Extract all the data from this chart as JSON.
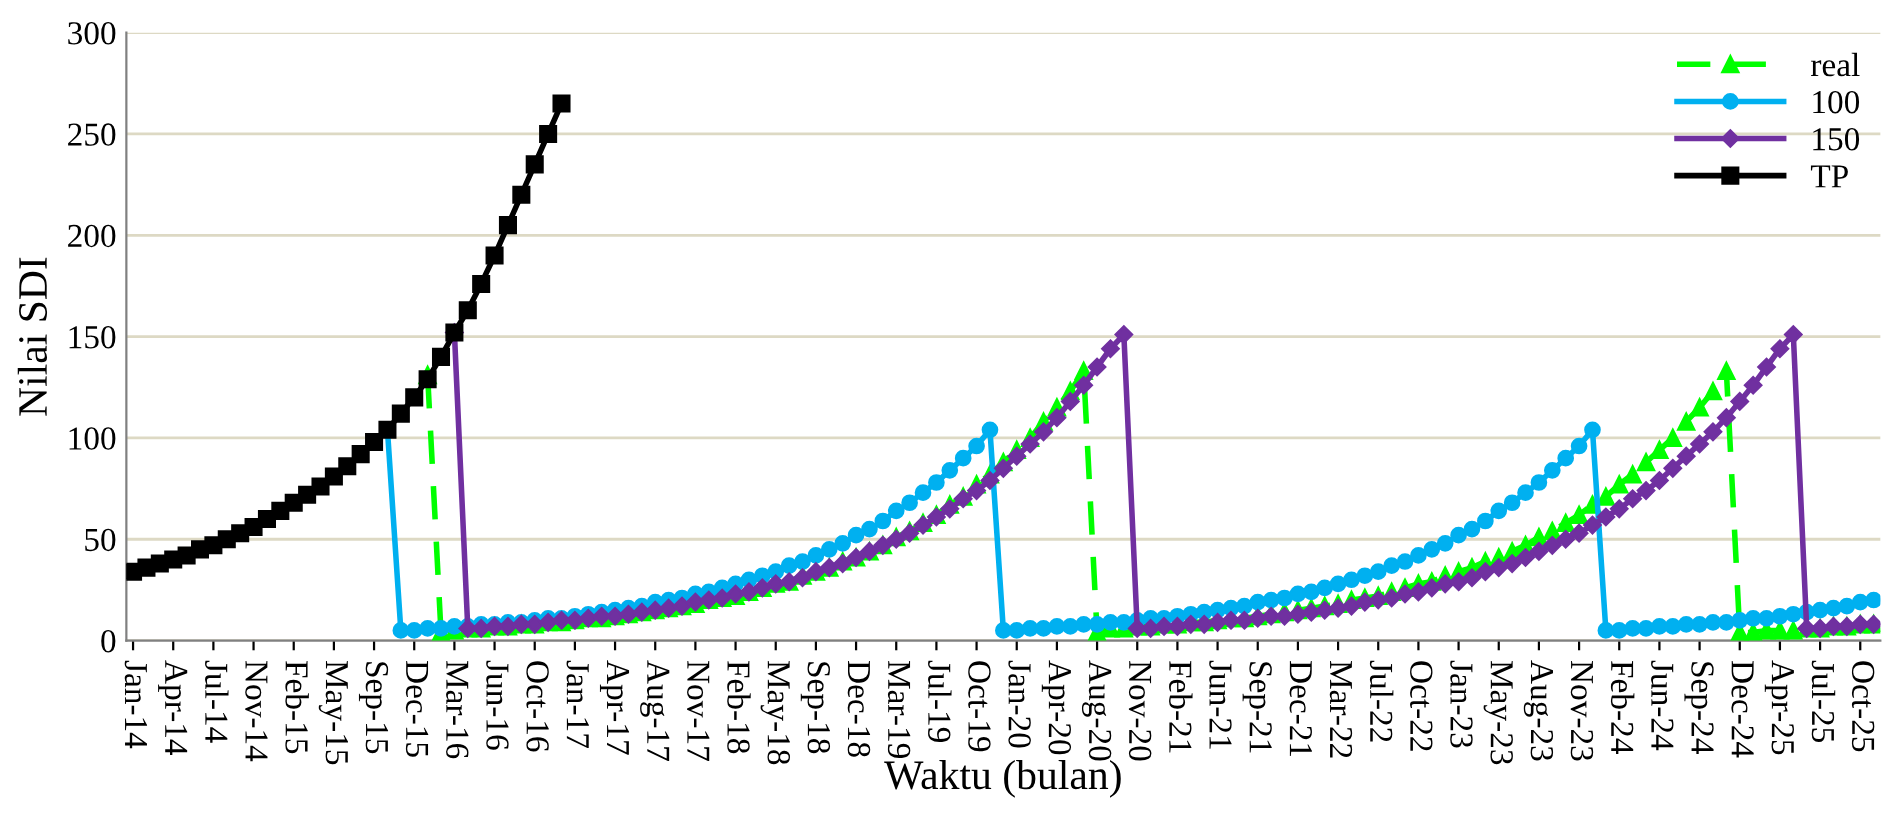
{
  "chart_data": {
    "type": "line",
    "xlabel": "Waktu (bulan)",
    "ylabel": "Nilai SDI",
    "categories": [
      "Jan-14",
      null,
      null,
      "Apr-14",
      null,
      null,
      "Jul-14",
      null,
      null,
      "Nov-14",
      null,
      null,
      "Feb-15",
      null,
      null,
      "May-15",
      null,
      null,
      "Sep-15",
      null,
      null,
      "Dec-15",
      null,
      null,
      "Mar-16",
      null,
      null,
      "Jun-16",
      null,
      null,
      "Oct-16",
      null,
      null,
      "Jan-17",
      null,
      null,
      "Apr-17",
      null,
      null,
      "Aug-17",
      null,
      null,
      "Nov-17",
      null,
      null,
      "Feb-18",
      null,
      null,
      "May-18",
      null,
      null,
      "Sep-18",
      null,
      null,
      "Dec-18",
      null,
      null,
      "Mar-19",
      null,
      null,
      "Jul-19",
      null,
      null,
      "Oct-19",
      null,
      null,
      "Jan-20",
      null,
      null,
      "Apr-20",
      null,
      null,
      "Aug-20",
      null,
      null,
      "Nov-20",
      null,
      null,
      "Feb-21",
      null,
      null,
      "Jun-21",
      null,
      null,
      "Sep-21",
      null,
      null,
      "Dec-21",
      null,
      null,
      "Mar-22",
      null,
      null,
      "Jul-22",
      null,
      null,
      "Oct-22",
      null,
      null,
      "Jan-23",
      null,
      null,
      "May-23",
      null,
      null,
      "Aug-23",
      null,
      null,
      "Nov-23",
      null,
      null,
      "Feb-24",
      null,
      null,
      "Jun-24",
      null,
      null,
      "Sep-24",
      null,
      null,
      "Dec-24",
      null,
      null,
      "Apr-25",
      null,
      null,
      "Jul-25",
      null,
      null,
      "Oct-25",
      null
    ],
    "series": [
      {
        "name": "real",
        "color": "#00ff00",
        "marker": "triangle",
        "line_style": "dashed",
        "values": [
          null,
          null,
          null,
          null,
          null,
          null,
          null,
          null,
          null,
          null,
          null,
          null,
          null,
          null,
          null,
          null,
          null,
          null,
          null,
          null,
          null,
          null,
          131,
          4,
          5,
          6,
          6,
          7,
          7,
          8,
          8,
          9,
          9,
          10,
          11,
          11,
          12,
          13,
          14,
          15,
          16,
          17,
          18,
          20,
          21,
          22,
          24,
          26,
          28,
          29,
          32,
          34,
          36,
          39,
          41,
          44,
          47,
          51,
          54,
          58,
          62,
          67,
          71,
          77,
          82,
          88,
          94,
          100,
          108,
          115,
          123,
          133,
          4,
          6,
          6,
          7,
          7,
          8,
          8,
          9,
          9,
          10,
          11,
          11,
          12,
          13,
          14,
          15,
          16,
          17,
          18,
          20,
          21,
          22,
          24,
          26,
          28,
          29,
          32,
          34,
          36,
          39,
          41,
          44,
          47,
          51,
          54,
          58,
          62,
          67,
          71,
          77,
          82,
          88,
          94,
          100,
          108,
          115,
          123,
          133,
          4,
          4,
          5,
          5,
          5,
          6,
          6,
          7,
          7,
          8,
          8
        ]
      },
      {
        "name": "100",
        "color": "#00b0f0",
        "marker": "circle",
        "line_style": "solid",
        "values": [
          null,
          null,
          null,
          null,
          null,
          null,
          null,
          null,
          null,
          null,
          null,
          null,
          null,
          null,
          null,
          null,
          null,
          null,
          null,
          104,
          5,
          5,
          6,
          6,
          7,
          7,
          8,
          8,
          9,
          9,
          10,
          11,
          11,
          12,
          13,
          14,
          15,
          16,
          17,
          19,
          20,
          21,
          23,
          24,
          26,
          28,
          30,
          32,
          34,
          37,
          39,
          42,
          45,
          48,
          52,
          55,
          59,
          64,
          68,
          73,
          78,
          84,
          90,
          96,
          104,
          5,
          5,
          6,
          6,
          7,
          7,
          8,
          8,
          9,
          9,
          10,
          11,
          11,
          12,
          13,
          14,
          15,
          16,
          17,
          19,
          20,
          21,
          23,
          24,
          26,
          28,
          30,
          32,
          34,
          37,
          39,
          42,
          45,
          48,
          52,
          55,
          59,
          64,
          68,
          73,
          78,
          84,
          90,
          96,
          104,
          5,
          5,
          6,
          6,
          7,
          7,
          8,
          8,
          9,
          9,
          10,
          11,
          11,
          12,
          13,
          14,
          15,
          16,
          17,
          19,
          20
        ]
      },
      {
        "name": "150",
        "color": "#7030a0",
        "marker": "diamond",
        "line_style": "solid",
        "values": [
          null,
          null,
          null,
          null,
          null,
          null,
          null,
          null,
          null,
          null,
          null,
          null,
          null,
          null,
          null,
          null,
          null,
          null,
          null,
          null,
          null,
          null,
          null,
          null,
          152,
          6,
          6,
          7,
          7,
          8,
          8,
          9,
          10,
          10,
          11,
          12,
          12,
          13,
          14,
          15,
          16,
          17,
          19,
          20,
          21,
          23,
          24,
          26,
          28,
          29,
          31,
          34,
          36,
          38,
          41,
          44,
          47,
          50,
          53,
          57,
          61,
          65,
          70,
          74,
          79,
          85,
          91,
          97,
          103,
          110,
          118,
          126,
          135,
          144,
          151,
          6,
          6,
          7,
          7,
          8,
          8,
          9,
          10,
          10,
          11,
          12,
          12,
          13,
          14,
          15,
          16,
          17,
          19,
          20,
          21,
          23,
          24,
          26,
          28,
          29,
          31,
          34,
          36,
          38,
          41,
          44,
          47,
          50,
          53,
          57,
          61,
          65,
          70,
          74,
          79,
          85,
          91,
          97,
          103,
          110,
          118,
          126,
          135,
          144,
          151,
          6,
          6,
          7,
          7,
          8,
          8
        ]
      },
      {
        "name": "TP",
        "color": "#000000",
        "marker": "square",
        "line_style": "solid",
        "values": [
          34,
          36,
          38,
          40,
          42,
          45,
          47,
          50,
          53,
          56,
          60,
          64,
          68,
          72,
          76,
          81,
          86,
          92,
          98,
          104,
          112,
          120,
          129,
          140,
          152,
          163,
          176,
          190,
          205,
          220,
          235,
          250,
          265,
          null,
          null,
          null,
          null,
          null,
          null,
          null,
          null,
          null,
          null,
          null,
          null,
          null,
          null,
          null,
          null,
          null,
          null,
          null,
          null,
          null,
          null,
          null,
          null,
          null,
          null,
          null,
          null,
          null,
          null,
          null,
          null,
          null,
          null,
          null,
          null,
          null,
          null,
          null,
          null,
          null,
          null,
          null,
          null,
          null,
          null,
          null,
          null,
          null,
          null,
          null,
          null,
          null,
          null,
          null,
          null,
          null,
          null,
          null,
          null,
          null,
          null,
          null,
          null,
          null,
          null,
          null,
          null,
          null,
          null,
          null,
          null,
          null,
          null,
          null,
          null,
          null,
          null,
          null,
          null,
          null,
          null,
          null,
          null,
          null,
          null,
          null,
          null,
          null,
          null,
          null,
          null,
          null,
          null,
          null,
          null,
          null,
          null
        ]
      }
    ],
    "ylim": [
      0,
      300
    ],
    "yticks": [
      0,
      50,
      100,
      150,
      200,
      250,
      300
    ],
    "grid": "y",
    "legend": "top right"
  }
}
